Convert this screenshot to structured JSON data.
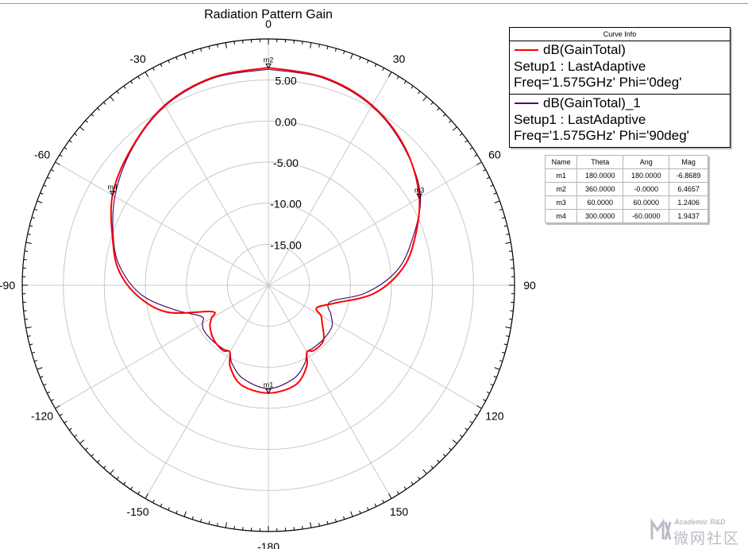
{
  "chart_data": {
    "type": "polar-line",
    "title": "Radiation Pattern Gain",
    "r_ticks": [
      5,
      0,
      -5,
      -10,
      -15
    ],
    "r_tick_labels": [
      "5.00",
      "0.00",
      "-5.00",
      "-10.00",
      "-15.00"
    ],
    "r_range": [
      -20,
      10
    ],
    "angle_labels": [
      "0",
      "30",
      "60",
      "90",
      "120",
      "150",
      "-180",
      "-150",
      "-120",
      "-90",
      "-60",
      "-30"
    ],
    "angle_values": [
      0,
      30,
      60,
      90,
      120,
      150,
      180,
      210,
      240,
      270,
      300,
      330
    ],
    "series": [
      {
        "name": "dB(GainTotal)",
        "color": "#ff0000",
        "theta": [
          0,
          15,
          30,
          45,
          60,
          75,
          85,
          95,
          105,
          115,
          120,
          125,
          135,
          145,
          150,
          155,
          165,
          180,
          195,
          205,
          210,
          215,
          225,
          235,
          240,
          245,
          255,
          265,
          275,
          285,
          300,
          315,
          330,
          345,
          360
        ],
        "gain": [
          6.5,
          6.2,
          5.3,
          3.6,
          1.24,
          -1.8,
          -4.1,
          -7.3,
          -11.6,
          -13.5,
          -12.6,
          -12.0,
          -10.5,
          -10.3,
          -10.6,
          -9.0,
          -7.4,
          -6.87,
          -7.4,
          -9.0,
          -10.6,
          -10.3,
          -10.6,
          -11.3,
          -12.0,
          -12.4,
          -7.3,
          -4.1,
          -1.8,
          -0.4,
          1.94,
          3.6,
          5.3,
          6.2,
          6.5
        ]
      },
      {
        "name": "dB(GainTotal)_1",
        "color": "#4b0a6e",
        "theta": [
          0,
          15,
          30,
          45,
          60,
          75,
          85,
          95,
          105,
          115,
          120,
          125,
          135,
          145,
          150,
          155,
          165,
          180,
          195,
          205,
          210,
          215,
          225,
          235,
          240,
          245,
          255,
          265,
          275,
          285,
          300,
          315,
          330,
          345,
          360
        ],
        "gain": [
          6.3,
          6.1,
          5.2,
          3.5,
          1.4,
          -2.2,
          -4.7,
          -8.3,
          -12.2,
          -11.6,
          -11.0,
          -10.7,
          -10.6,
          -10.6,
          -10.6,
          -9.5,
          -8.2,
          -7.4,
          -8.2,
          -9.5,
          -10.6,
          -10.5,
          -10.4,
          -10.4,
          -10.7,
          -11.0,
          -8.3,
          -4.7,
          -2.2,
          -0.5,
          1.6,
          3.5,
          5.2,
          6.1,
          6.3
        ]
      }
    ],
    "markers": [
      {
        "name": "m1",
        "theta": 180,
        "gain": -6.8689
      },
      {
        "name": "m2",
        "theta": 360,
        "gain": 6.4657
      },
      {
        "name": "m3",
        "theta": 60,
        "gain": 1.2406
      },
      {
        "name": "m4",
        "theta": 300,
        "gain": 1.9437
      }
    ]
  },
  "legend": {
    "title": "Curve Info",
    "entries": [
      {
        "name": "dB(GainTotal)",
        "line2": "Setup1 : LastAdaptive",
        "line3": "Freq='1.575GHz' Phi='0deg'",
        "color": "#ff0000"
      },
      {
        "name": "dB(GainTotal)_1",
        "line2": "Setup1 : LastAdaptive",
        "line3": "Freq='1.575GHz' Phi='90deg'",
        "color": "#4b0a6e"
      }
    ]
  },
  "marker_table": {
    "headers": [
      "Name",
      "Theta",
      "Ang",
      "Mag"
    ],
    "rows": [
      [
        "m1",
        "180.0000",
        "180.0000",
        "-6.8689"
      ],
      [
        "m2",
        "360.0000",
        "-0.0000",
        "6.4657"
      ],
      [
        "m3",
        "60.0000",
        "60.0000",
        "1.2406"
      ],
      [
        "m4",
        "300.0000",
        "-60.0000",
        "1.9437"
      ]
    ]
  },
  "watermark": {
    "en": "Academic R&D",
    "cn": "微网社区"
  }
}
